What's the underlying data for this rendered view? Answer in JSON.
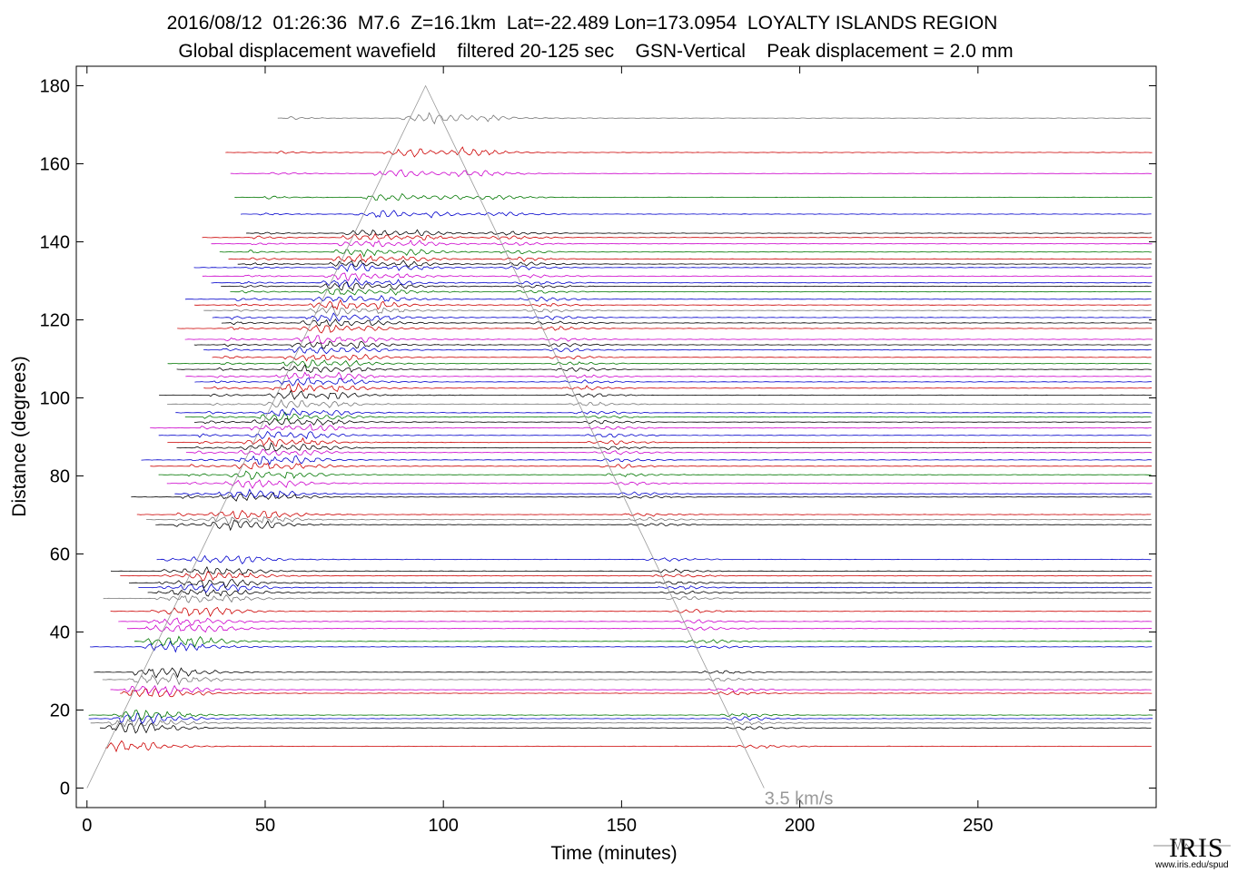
{
  "header": {
    "line1": "2016/08/12  01:26:36  M7.6  Z=16.1km  Lat=-22.489 Lon=173.0954  LOYALTY ISLANDS REGION",
    "line2": "Global displacement wavefield    filtered 20-125 sec    GSN-Vertical    Peak displacement = 2.0 mm"
  },
  "chart_data": {
    "type": "line",
    "title": "2016/08/12  01:26:36  M7.6  Z=16.1km  Lat=-22.489 Lon=173.0954  LOYALTY ISLANDS REGION",
    "subtitle": "Global displacement wavefield    filtered 20-125 sec    GSN-Vertical    Peak displacement = 2.0 mm",
    "xlabel": "Time (minutes)",
    "ylabel": "Distance (degrees)",
    "xlim": [
      -3,
      300
    ],
    "ylim": [
      -5,
      185
    ],
    "xticks": [
      0,
      50,
      100,
      150,
      200,
      250
    ],
    "yticks": [
      0,
      20,
      40,
      60,
      80,
      100,
      120,
      140,
      160,
      180
    ],
    "grid": false,
    "trace_colors": [
      "#000000",
      "#cc0000",
      "#0000cc",
      "#007700",
      "#cc00cc",
      "#777777"
    ],
    "reference_line": {
      "label": "3.5 km/s",
      "color": "#999999",
      "points": [
        [
          0,
          0
        ],
        [
          95,
          180
        ],
        [
          190,
          0
        ]
      ]
    },
    "traces": [
      {
        "distance": 10.7,
        "color": "#cc0000"
      },
      {
        "distance": 15.4,
        "color": "#000000"
      },
      {
        "distance": 16.7,
        "color": "#777777"
      },
      {
        "distance": 17.8,
        "color": "#0000cc"
      },
      {
        "distance": 18.7,
        "color": "#007700"
      },
      {
        "distance": 24.3,
        "color": "#cc0000"
      },
      {
        "distance": 25.2,
        "color": "#cc00cc"
      },
      {
        "distance": 27.8,
        "color": "#777777"
      },
      {
        "distance": 29.7,
        "color": "#000000"
      },
      {
        "distance": 36.2,
        "color": "#0000cc"
      },
      {
        "distance": 37.6,
        "color": "#007700"
      },
      {
        "distance": 40.9,
        "color": "#cc00cc"
      },
      {
        "distance": 42.7,
        "color": "#cc00cc"
      },
      {
        "distance": 45.3,
        "color": "#cc0000"
      },
      {
        "distance": 48.6,
        "color": "#777777"
      },
      {
        "distance": 50.1,
        "color": "#000000"
      },
      {
        "distance": 51.4,
        "color": "#0000cc"
      },
      {
        "distance": 52.6,
        "color": "#000000"
      },
      {
        "distance": 54.4,
        "color": "#cc0000"
      },
      {
        "distance": 55.6,
        "color": "#000000"
      },
      {
        "distance": 58.6,
        "color": "#0000cc"
      },
      {
        "distance": 67.5,
        "color": "#000000"
      },
      {
        "distance": 68.8,
        "color": "#777777"
      },
      {
        "distance": 70.1,
        "color": "#cc0000"
      },
      {
        "distance": 74.6,
        "color": "#000000"
      },
      {
        "distance": 75.4,
        "color": "#0000cc"
      },
      {
        "distance": 78.1,
        "color": "#cc00cc"
      },
      {
        "distance": 80.3,
        "color": "#007700"
      },
      {
        "distance": 82.5,
        "color": "#cc0000"
      },
      {
        "distance": 84.1,
        "color": "#0000cc"
      },
      {
        "distance": 86.0,
        "color": "#cc00cc"
      },
      {
        "distance": 87.2,
        "color": "#000000"
      },
      {
        "distance": 88.6,
        "color": "#cc0000"
      },
      {
        "distance": 90.4,
        "color": "#0000cc"
      },
      {
        "distance": 92.3,
        "color": "#cc00cc"
      },
      {
        "distance": 93.8,
        "color": "#000000"
      },
      {
        "distance": 95.1,
        "color": "#007700"
      },
      {
        "distance": 96.2,
        "color": "#0000cc"
      },
      {
        "distance": 98.4,
        "color": "#777777"
      },
      {
        "distance": 100.7,
        "color": "#000000"
      },
      {
        "distance": 102.5,
        "color": "#cc0000"
      },
      {
        "distance": 104.1,
        "color": "#0000cc"
      },
      {
        "distance": 105.5,
        "color": "#cc00cc"
      },
      {
        "distance": 107.3,
        "color": "#000000"
      },
      {
        "distance": 108.8,
        "color": "#007700"
      },
      {
        "distance": 110.4,
        "color": "#cc0000"
      },
      {
        "distance": 112.3,
        "color": "#0000cc"
      },
      {
        "distance": 113.6,
        "color": "#000000"
      },
      {
        "distance": 115.0,
        "color": "#cc00cc"
      },
      {
        "distance": 117.8,
        "color": "#cc0000"
      },
      {
        "distance": 119.2,
        "color": "#000000"
      },
      {
        "distance": 120.6,
        "color": "#0000cc"
      },
      {
        "distance": 122.4,
        "color": "#777777"
      },
      {
        "distance": 123.8,
        "color": "#cc0000"
      },
      {
        "distance": 125.3,
        "color": "#0000cc"
      },
      {
        "distance": 127.2,
        "color": "#007700"
      },
      {
        "distance": 128.6,
        "color": "#000000"
      },
      {
        "distance": 129.5,
        "color": "#0000cc"
      },
      {
        "distance": 131.2,
        "color": "#cc00cc"
      },
      {
        "distance": 133.4,
        "color": "#0000cc"
      },
      {
        "distance": 134.3,
        "color": "#000000"
      },
      {
        "distance": 135.6,
        "color": "#cc0000"
      },
      {
        "distance": 137.4,
        "color": "#007700"
      },
      {
        "distance": 139.5,
        "color": "#cc00cc"
      },
      {
        "distance": 141.1,
        "color": "#cc0000"
      },
      {
        "distance": 142.2,
        "color": "#000000"
      },
      {
        "distance": 147.1,
        "color": "#0000cc"
      },
      {
        "distance": 151.4,
        "color": "#007700"
      },
      {
        "distance": 157.5,
        "color": "#cc00cc"
      },
      {
        "distance": 162.9,
        "color": "#cc0000"
      },
      {
        "distance": 171.7,
        "color": "#777777"
      }
    ]
  },
  "logo": {
    "text": "IRIS",
    "url": "www.iris.edu/spud"
  }
}
